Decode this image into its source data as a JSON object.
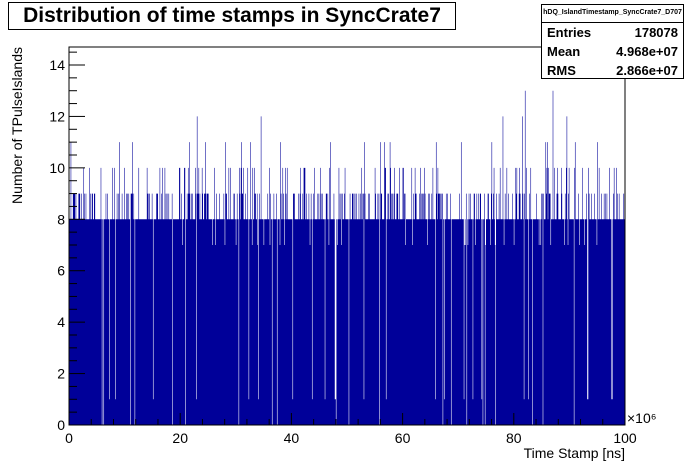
{
  "chart_data": {
    "type": "histogram",
    "title": "Distribution of time stamps in SyncCrate7",
    "xlabel": "Time Stamp [ns]",
    "ylabel": "Number of TPulseIslands",
    "x_multiplier_label": "×10⁶",
    "xlim": [
      0,
      100
    ],
    "ylim": [
      0,
      14.7
    ],
    "x_ticks": [
      0,
      20,
      40,
      60,
      80,
      100
    ],
    "y_ticks": [
      0,
      2,
      4,
      6,
      8,
      10,
      12,
      14
    ],
    "bar_color": "#000099",
    "bin_count": 1000,
    "typical_level": 8,
    "level_distribution": "counts mostly 7-9 per bin, many bins at 9-10, scattered spikes to 11-13, a few bins at 0-1 near the baseline",
    "notable_bins": [
      {
        "x": 23.0,
        "y": 12
      },
      {
        "x": 24.5,
        "y": 11
      },
      {
        "x": 31.0,
        "y": 11
      },
      {
        "x": 34.5,
        "y": 12
      },
      {
        "x": 38.0,
        "y": 11
      },
      {
        "x": 47.0,
        "y": 11
      },
      {
        "x": 57.8,
        "y": 11
      },
      {
        "x": 66.0,
        "y": 11
      },
      {
        "x": 70.5,
        "y": 11
      },
      {
        "x": 76.0,
        "y": 11
      },
      {
        "x": 78.0,
        "y": 12
      },
      {
        "x": 81.5,
        "y": 12
      },
      {
        "x": 82.1,
        "y": 13
      },
      {
        "x": 86.0,
        "y": 11
      },
      {
        "x": 87.0,
        "y": 13
      },
      {
        "x": 89.5,
        "y": 12
      },
      {
        "x": 91.0,
        "y": 11
      },
      {
        "x": 95.0,
        "y": 11
      }
    ]
  },
  "stats": {
    "name": "hDQ_IslandTimestamp_SyncCrate7_D707",
    "entries_label": "Entries",
    "entries_value": "178078",
    "mean_label": "Mean",
    "mean_value": "4.968e+07",
    "rms_label": "RMS",
    "rms_value": "2.866e+07"
  }
}
